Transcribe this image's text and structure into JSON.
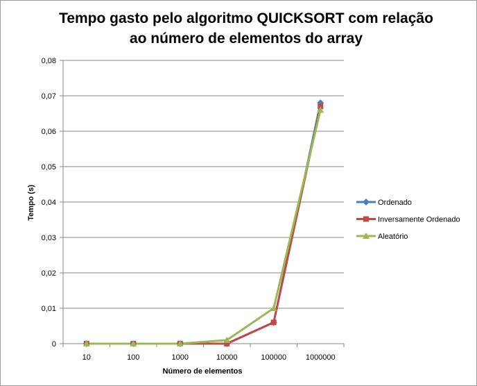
{
  "chart_data": {
    "type": "line",
    "title_lines": [
      "Tempo gasto pelo algoritmo QUICKSORT com relação",
      "ao número de elementos do array"
    ],
    "xlabel": "Número de elementos",
    "ylabel": "Tempo (s)",
    "categories": [
      "10",
      "100",
      "1000",
      "10000",
      "100000",
      "1000000"
    ],
    "ylim": [
      0,
      0.08
    ],
    "yticks": [
      "0",
      "0,01",
      "0,02",
      "0,03",
      "0,04",
      "0,05",
      "0,06",
      "0,07",
      "0,08"
    ],
    "grid": true,
    "legend_position": "right",
    "series": [
      {
        "name": "Ordenado",
        "values": [
          0,
          0,
          0,
          0,
          0.006,
          0.068
        ],
        "color": "#4a7ebb",
        "marker": "diamond"
      },
      {
        "name": "Inversamente Ordenado",
        "values": [
          0,
          0,
          0,
          0,
          0.006,
          0.067
        ],
        "color": "#be4b48",
        "marker": "square"
      },
      {
        "name": "Aleatório",
        "values": [
          0,
          0,
          0,
          0.001,
          0.01,
          0.066
        ],
        "color": "#98b954",
        "marker": "triangle"
      }
    ]
  }
}
